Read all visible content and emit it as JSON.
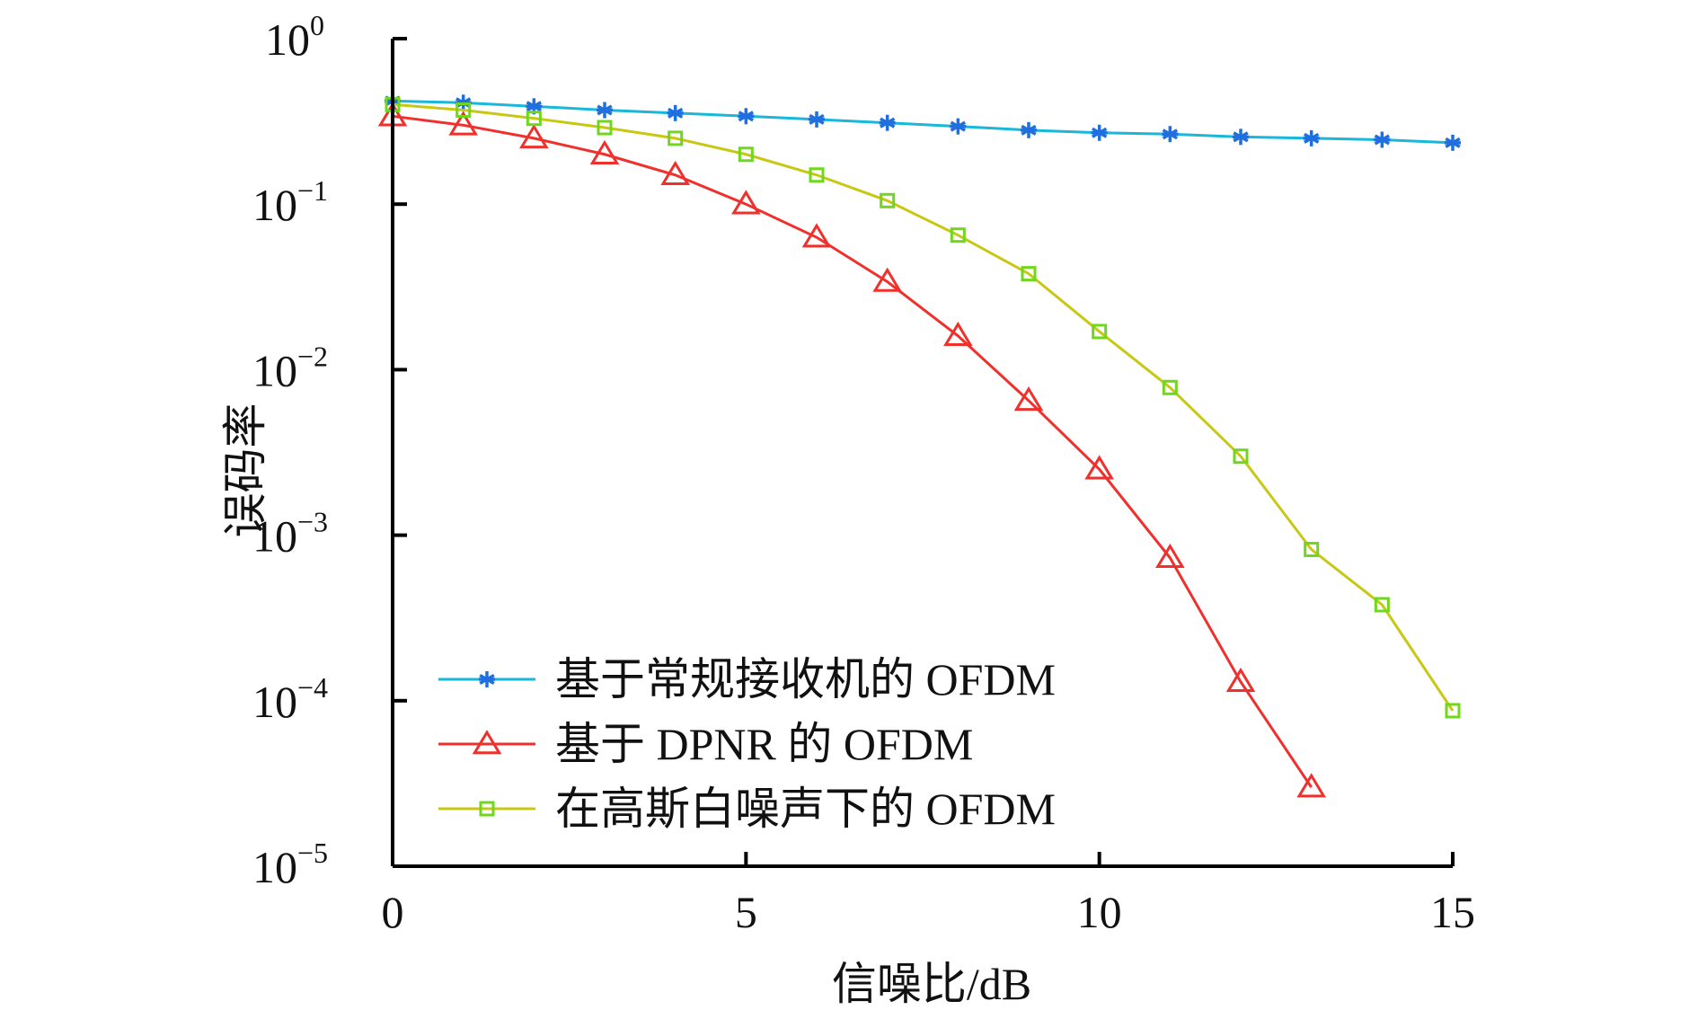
{
  "chart_data": {
    "type": "line",
    "xlabel": "信噪比/dB",
    "ylabel": "误码率",
    "xlim": [
      0,
      15
    ],
    "ylim": [
      1e-05,
      1
    ],
    "yscale": "log",
    "grid": false,
    "legend_position": "bottom-left",
    "x_ticks": [
      "0",
      "5",
      "10",
      "15"
    ],
    "y_ticks": [
      {
        "base": "10",
        "exp": "0"
      },
      {
        "base": "10",
        "exp": "−1"
      },
      {
        "base": "10",
        "exp": "−2"
      },
      {
        "base": "10",
        "exp": "−3"
      },
      {
        "base": "10",
        "exp": "−4"
      },
      {
        "base": "10",
        "exp": "−5"
      }
    ],
    "series": [
      {
        "name": "基于常规接收机的 OFDM",
        "marker": "star",
        "color": "#19b7d9",
        "marker_color": "#1f6fe0",
        "x": [
          0,
          1,
          2,
          3,
          4,
          5,
          6,
          7,
          8,
          9,
          10,
          11,
          12,
          13,
          14,
          15
        ],
        "y": [
          0.42,
          0.41,
          0.39,
          0.37,
          0.355,
          0.34,
          0.325,
          0.31,
          0.295,
          0.28,
          0.27,
          0.265,
          0.255,
          0.25,
          0.245,
          0.235
        ]
      },
      {
        "name": "基于 DPNR 的 OFDM",
        "marker": "triangle",
        "color": "#f0302c",
        "marker_color": "#f0302c",
        "x": [
          0,
          1,
          2,
          3,
          4,
          5,
          6,
          7,
          8,
          9,
          10,
          11,
          12,
          13
        ],
        "y": [
          0.34,
          0.3,
          0.25,
          0.2,
          0.15,
          0.1,
          0.063,
          0.034,
          0.016,
          0.0065,
          0.0025,
          0.00073,
          0.00013,
          3e-05
        ]
      },
      {
        "name": "在高斯白噪声下的 OFDM",
        "marker": "square",
        "color": "#c8c814",
        "marker_color": "#6fd81c",
        "x": [
          0,
          1,
          2,
          3,
          4,
          5,
          6,
          7,
          8,
          9,
          10,
          11,
          12,
          13,
          14,
          15
        ],
        "y": [
          0.4,
          0.37,
          0.33,
          0.29,
          0.25,
          0.2,
          0.15,
          0.105,
          0.065,
          0.038,
          0.017,
          0.0078,
          0.003,
          0.00082,
          0.00038,
          8.7e-05
        ]
      }
    ]
  }
}
